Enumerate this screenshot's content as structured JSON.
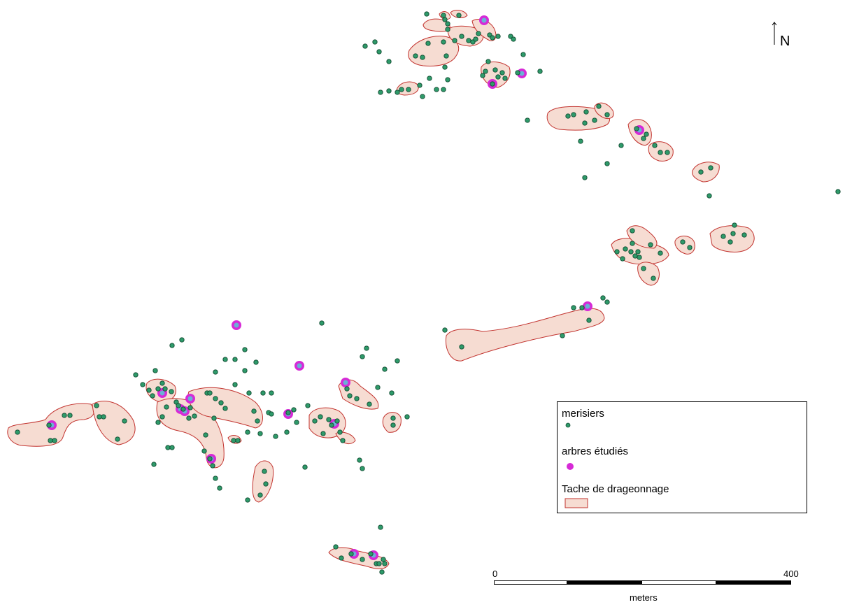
{
  "map": {
    "north_label": "N",
    "legend": {
      "tree_label": "merisiers",
      "studied_label": "arbres étudiés",
      "patch_label": "Tache de drageonnage"
    },
    "scale": {
      "start_label": "0",
      "end_label": "400",
      "unit_label": "meters"
    },
    "colors": {
      "tree_fill": "#2e9a6a",
      "tree_stroke": "#114a30",
      "studied_ring": "#d62ad6",
      "patch_fill": "#f6dcd2",
      "patch_stroke": "#c2332f"
    }
  }
}
